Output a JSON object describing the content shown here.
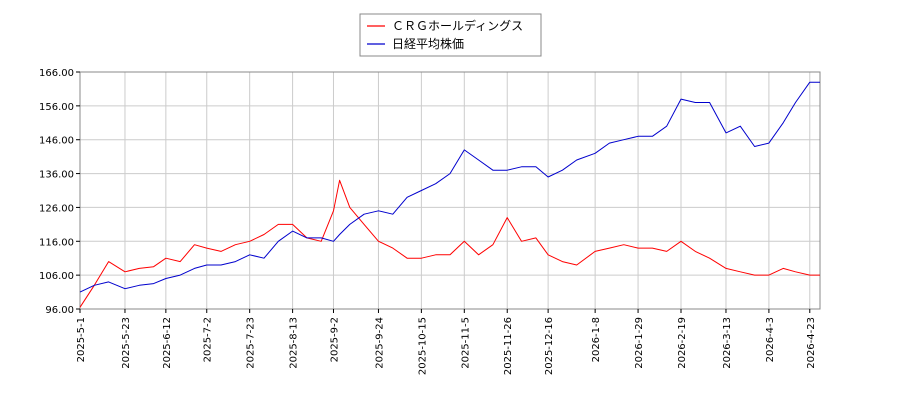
{
  "chart_data": {
    "type": "line",
    "ylim": [
      96,
      166
    ],
    "y_ticks": [
      "96.00",
      "106.00",
      "116.00",
      "126.00",
      "136.00",
      "146.00",
      "156.00",
      "166.00"
    ],
    "x_ticks": [
      "2025-5-1",
      "2025-5-23",
      "2025-6-12",
      "2025-7-2",
      "2025-7-23",
      "2025-8-13",
      "2025-9-2",
      "2025-9-24",
      "2025-10-15",
      "2025-11-5",
      "2025-11-26",
      "2025-12-16",
      "2026-1-8",
      "2026-1-29",
      "2026-2-19",
      "2026-3-13",
      "2026-4-3",
      "2026-4-23"
    ],
    "grid": true,
    "legend_position": "top-center",
    "series": [
      {
        "name": "ＣＲＧホールディングス",
        "color": "#ff0000",
        "x": [
          "2025-5-1",
          "2025-5-8",
          "2025-5-15",
          "2025-5-23",
          "2025-5-30",
          "2025-6-6",
          "2025-6-12",
          "2025-6-19",
          "2025-6-26",
          "2025-7-2",
          "2025-7-9",
          "2025-7-16",
          "2025-7-23",
          "2025-7-30",
          "2025-8-6",
          "2025-8-13",
          "2025-8-20",
          "2025-8-27",
          "2025-9-2",
          "2025-9-5",
          "2025-9-10",
          "2025-9-17",
          "2025-9-24",
          "2025-10-1",
          "2025-10-8",
          "2025-10-15",
          "2025-10-22",
          "2025-10-29",
          "2025-11-5",
          "2025-11-12",
          "2025-11-19",
          "2025-11-26",
          "2025-12-3",
          "2025-12-10",
          "2025-12-16",
          "2025-12-23",
          "2025-12-30",
          "2026-1-8",
          "2026-1-15",
          "2026-1-22",
          "2026-1-29",
          "2026-2-5",
          "2026-2-12",
          "2026-2-19",
          "2026-2-26",
          "2026-3-5",
          "2026-3-13",
          "2026-3-20",
          "2026-3-27",
          "2026-4-3",
          "2026-4-10",
          "2026-4-16",
          "2026-4-23",
          "2026-4-28"
        ],
        "values": [
          96.5,
          103,
          110,
          107,
          108,
          108.5,
          111,
          110,
          115,
          114,
          113,
          115,
          116,
          118,
          121,
          121,
          117,
          116,
          125,
          134,
          126,
          121,
          116,
          114,
          111,
          111,
          112,
          112,
          116,
          112,
          115,
          123,
          116,
          117,
          112,
          110,
          109,
          113,
          114,
          115,
          114,
          114,
          113,
          116,
          113,
          111,
          108,
          107,
          106,
          106,
          108,
          107,
          106,
          106
        ]
      },
      {
        "name": "日経平均株価",
        "color": "#0000cd",
        "x": [
          "2025-5-1",
          "2025-5-8",
          "2025-5-15",
          "2025-5-23",
          "2025-5-30",
          "2025-6-6",
          "2025-6-12",
          "2025-6-19",
          "2025-6-26",
          "2025-7-2",
          "2025-7-9",
          "2025-7-16",
          "2025-7-23",
          "2025-7-30",
          "2025-8-6",
          "2025-8-13",
          "2025-8-20",
          "2025-8-27",
          "2025-9-2",
          "2025-9-5",
          "2025-9-10",
          "2025-9-17",
          "2025-9-24",
          "2025-10-1",
          "2025-10-8",
          "2025-10-15",
          "2025-10-22",
          "2025-10-29",
          "2025-11-5",
          "2025-11-12",
          "2025-11-19",
          "2025-11-26",
          "2025-12-3",
          "2025-12-10",
          "2025-12-16",
          "2025-12-23",
          "2025-12-30",
          "2026-1-8",
          "2026-1-15",
          "2026-1-22",
          "2026-1-29",
          "2026-2-5",
          "2026-2-12",
          "2026-2-19",
          "2026-2-26",
          "2026-3-5",
          "2026-3-13",
          "2026-3-20",
          "2026-3-27",
          "2026-4-3",
          "2026-4-10",
          "2026-4-16",
          "2026-4-23",
          "2026-4-28"
        ],
        "values": [
          101,
          103,
          104,
          102,
          103,
          103.5,
          105,
          106,
          108,
          109,
          109,
          110,
          112,
          111,
          116,
          119,
          117,
          117,
          116,
          118,
          121,
          124,
          125,
          124,
          129,
          131,
          133,
          136,
          143,
          140,
          137,
          137,
          138,
          138,
          135,
          137,
          140,
          142,
          145,
          146,
          147,
          147,
          150,
          158,
          157,
          157,
          148,
          150,
          144,
          145,
          151,
          157,
          163,
          163
        ]
      }
    ]
  }
}
